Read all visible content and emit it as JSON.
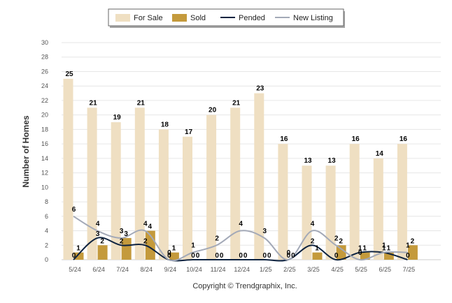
{
  "chart_data": {
    "type": "bar",
    "ylabel": "Number of Homes",
    "ylim": [
      0,
      30
    ],
    "yticks": [
      0,
      2,
      4,
      6,
      8,
      10,
      12,
      14,
      16,
      18,
      20,
      22,
      24,
      26,
      28,
      30
    ],
    "grid": true,
    "legend_position": "top-center",
    "categories": [
      "5/24",
      "6/24",
      "7/24",
      "8/24",
      "9/24",
      "10/24",
      "11/24",
      "12/24",
      "1/25",
      "2/25",
      "3/25",
      "4/25",
      "5/25",
      "6/25",
      "7/25"
    ],
    "series": [
      {
        "name": "For Sale",
        "kind": "bar",
        "color": "#efdfc2",
        "values": [
          25,
          21,
          19,
          21,
          18,
          17,
          20,
          21,
          23,
          16,
          13,
          13,
          16,
          14,
          16
        ]
      },
      {
        "name": "Sold",
        "kind": "bar",
        "color": "#c49a3c",
        "values": [
          1,
          2,
          3,
          4,
          1,
          0,
          0,
          0,
          0,
          0,
          1,
          2,
          1,
          1,
          2
        ]
      },
      {
        "name": "Pended",
        "kind": "line",
        "color": "#0e2340",
        "values": [
          0,
          3,
          2,
          2,
          0,
          0,
          0,
          0,
          0,
          0,
          2,
          0,
          1,
          1,
          0
        ]
      },
      {
        "name": "New Listing",
        "kind": "line",
        "color": "#a3a9b7",
        "values": [
          6,
          4,
          3,
          4,
          0,
          1,
          2,
          4,
          3,
          0,
          4,
          2,
          0,
          1,
          1
        ]
      }
    ]
  },
  "footer": {
    "copyright": "Copyright © Trendgraphix, Inc."
  }
}
